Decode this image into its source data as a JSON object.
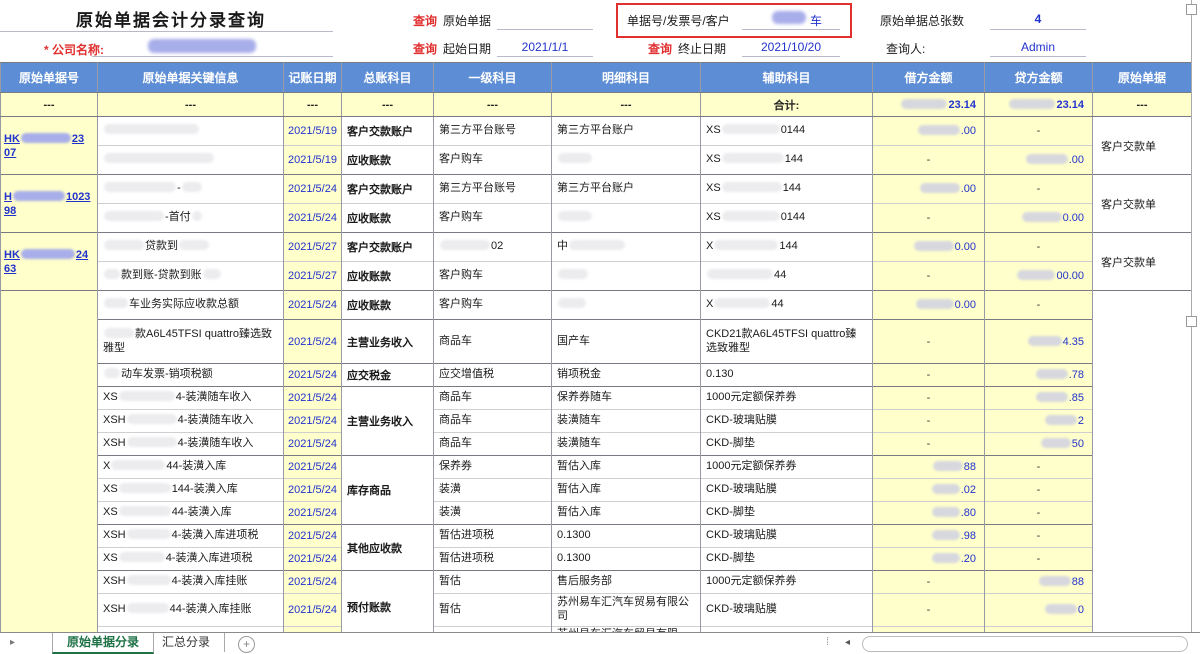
{
  "header": {
    "title": "原始单据会计分录查询",
    "company_label": "* 公司名称:",
    "query_label": "查询",
    "doc_query_label": "原始单据",
    "start_date_label": "起始日期",
    "start_date_value": "2021/1/1",
    "end_date_label": "终止日期",
    "end_date_value": "2021/10/20",
    "search_label": "单据号/发票号/客户",
    "search_value_suffix": "车",
    "total_label": "原始单据总张数",
    "total_value": "4",
    "operator_label": "查询人:",
    "operator_value": "Admin"
  },
  "table": {
    "columns": [
      "原始单据号",
      "原始单据关键信息",
      "记账日期",
      "总账科目",
      "一级科目",
      "明细科目",
      "辅助科目",
      "借方金额",
      "贷方金额",
      "原始单据"
    ],
    "summary": {
      "dash": "---",
      "total_label": "合计:",
      "debit_tail": "23.14",
      "credit_tail": "23.14"
    }
  },
  "rows": [
    {
      "group": 1,
      "doc": {
        "span": 2,
        "lines": [
          [
            {
              "t": "HK"
            },
            {
              "r": 50,
              "c": "b"
            },
            {
              "t": "23"
            }
          ],
          [
            {
              "t": "07"
            }
          ]
        ]
      },
      "key": [
        {
          "r": 95,
          "c": "w"
        }
      ],
      "date": "2021/5/19",
      "gl": "客户交款账户",
      "lvl": "第三方平台账号",
      "det": "第三方平台账户",
      "aux": [
        {
          "t": "XS"
        },
        {
          "r": 58,
          "c": "w"
        },
        {
          "t": "0144"
        }
      ],
      "debit": [
        {
          "r": 42
        },
        {
          "t": ".00"
        }
      ],
      "credit": [
        {
          "t": "-"
        }
      ],
      "orig": {
        "span": 2,
        "t": "客户交款单"
      }
    },
    {
      "key": [
        {
          "r": 110,
          "c": "w"
        }
      ],
      "date": "2021/5/19",
      "gl": "应收账款",
      "lvl": "客户购车",
      "det": [
        {
          "r": 34,
          "c": "w"
        }
      ],
      "aux": [
        {
          "t": "XS"
        },
        {
          "r": 62,
          "c": "w"
        },
        {
          "t": "144"
        }
      ],
      "debit": [
        {
          "t": "-"
        }
      ],
      "credit": [
        {
          "r": 42
        },
        {
          "t": ".00"
        }
      ]
    },
    {
      "group": 1,
      "doc": {
        "span": 2,
        "lines": [
          [
            {
              "t": "H"
            },
            {
              "r": 52,
              "c": "b"
            },
            {
              "t": "1023"
            }
          ],
          [
            {
              "t": "98"
            }
          ]
        ]
      },
      "key": [
        {
          "r": 72,
          "c": "w"
        },
        {
          "t": "-"
        },
        {
          "r": 20,
          "c": "w"
        }
      ],
      "date": "2021/5/24",
      "gl": "客户交款账户",
      "lvl": "第三方平台账号",
      "det": "第三方平台账户",
      "aux": [
        {
          "t": "XS"
        },
        {
          "r": 60,
          "c": "w"
        },
        {
          "t": "144"
        }
      ],
      "debit": [
        {
          "r": 40
        },
        {
          "t": ".00"
        }
      ],
      "credit": [
        {
          "t": "-"
        }
      ],
      "orig": {
        "span": 2,
        "t": "客户交款单"
      }
    },
    {
      "key": [
        {
          "r": 60,
          "c": "w"
        },
        {
          "t": "-首付"
        },
        {
          "r": 10,
          "c": "w"
        }
      ],
      "date": "2021/5/24",
      "gl": "应收账款",
      "lvl": "客户购车",
      "det": [
        {
          "r": 34,
          "c": "w"
        }
      ],
      "aux": [
        {
          "t": "XS"
        },
        {
          "r": 58,
          "c": "w"
        },
        {
          "t": "0144"
        }
      ],
      "debit": [
        {
          "t": "-"
        }
      ],
      "credit": [
        {
          "r": 40
        },
        {
          "t": "0.00"
        }
      ]
    },
    {
      "group": 1,
      "doc": {
        "span": 2,
        "lines": [
          [
            {
              "t": "HK"
            },
            {
              "r": 54,
              "c": "b"
            },
            {
              "t": "24"
            }
          ],
          [
            {
              "t": "63"
            }
          ]
        ]
      },
      "key": [
        {
          "r": 40,
          "c": "w"
        },
        {
          "t": "贷款到"
        },
        {
          "r": 30,
          "c": "w"
        }
      ],
      "date": "2021/5/27",
      "gl": "客户交款账户",
      "lvl": [
        {
          "r": 50,
          "c": "w"
        },
        {
          "t": "02"
        }
      ],
      "det": [
        {
          "t": "中"
        },
        {
          "r": 56,
          "c": "w"
        }
      ],
      "aux": [
        {
          "t": "X"
        },
        {
          "r": 64,
          "c": "w"
        },
        {
          "t": "144"
        }
      ],
      "debit": [
        {
          "r": 40
        },
        {
          "t": "0.00"
        }
      ],
      "credit": [
        {
          "t": "-"
        }
      ],
      "orig": {
        "span": 2,
        "t": "客户交款单"
      }
    },
    {
      "key": [
        {
          "r": 16,
          "c": "w"
        },
        {
          "t": "款到账-贷款到账"
        },
        {
          "r": 18,
          "c": "w"
        }
      ],
      "date": "2021/5/27",
      "gl": "应收账款",
      "lvl": "客户购车",
      "det": [
        {
          "r": 30,
          "c": "w"
        }
      ],
      "aux": [
        {
          "r": 66,
          "c": "w"
        },
        {
          "t": "44"
        }
      ],
      "debit": [
        {
          "t": "-"
        }
      ],
      "credit": [
        {
          "r": 38
        },
        {
          "t": "00.00"
        }
      ]
    },
    {
      "group": 1,
      "doc": {
        "span": 14,
        "t": ""
      },
      "key": [
        {
          "r": 24,
          "c": "w"
        },
        {
          "t": "车业务实际应收款总额"
        }
      ],
      "date": "2021/5/24",
      "gl": "应收账款",
      "lvl": "客户购车",
      "det": [
        {
          "r": 28,
          "c": "w"
        }
      ],
      "aux": [
        {
          "t": "X"
        },
        {
          "r": 56,
          "c": "w"
        },
        {
          "t": "44"
        }
      ],
      "debit": [
        {
          "r": 38
        },
        {
          "t": "0.00"
        }
      ],
      "credit": [
        {
          "t": "-"
        }
      ],
      "orig": {
        "span": 14,
        "t": ""
      }
    },
    {
      "group": 1,
      "key": [
        {
          "r": 30,
          "c": "w"
        },
        {
          "t": "款A6L45TFSI quattro臻选致雅型"
        }
      ],
      "date": "2021/5/24",
      "gl": "主营业务收入",
      "lvl": "商品车",
      "det": "国产车",
      "aux": "CKD21款A6L45TFSI quattro臻选致雅型",
      "debit": [
        {
          "t": "-"
        }
      ],
      "credit": [
        {
          "r": 34
        },
        {
          "t": "4.35"
        }
      ]
    },
    {
      "group": 1,
      "key": [
        {
          "r": 16,
          "c": "w"
        },
        {
          "t": "动车发票-销项税额"
        }
      ],
      "date": "2021/5/24",
      "gl": "应交税金",
      "lvl": "应交增值税",
      "det": "销项税金",
      "aux": "0.130",
      "debit": [
        {
          "t": "-"
        }
      ],
      "credit": [
        {
          "r": 32
        },
        {
          "t": ".78"
        }
      ]
    },
    {
      "group": 1,
      "key": [
        {
          "t": "XS"
        },
        {
          "r": 56,
          "c": "w"
        },
        {
          "t": "4-装潢随车收入"
        }
      ],
      "date": "2021/5/24",
      "gl": {
        "span": 3,
        "t": "主营业务收入"
      },
      "lvl": "商品车",
      "det": "保养券随车",
      "aux": "1000元定额保养券",
      "debit": [
        {
          "t": "-"
        }
      ],
      "credit": [
        {
          "r": 32
        },
        {
          "t": ".85"
        }
      ]
    },
    {
      "key": [
        {
          "t": "XSH"
        },
        {
          "r": 50,
          "c": "w"
        },
        {
          "t": "4-装潢随车收入"
        }
      ],
      "date": "2021/5/24",
      "lvl": "商品车",
      "det": "装潢随车",
      "aux": "CKD-玻璃贴膜",
      "debit": [
        {
          "t": "-"
        }
      ],
      "credit": [
        {
          "r": 32
        },
        {
          "t": "2"
        }
      ]
    },
    {
      "key": [
        {
          "t": "XSH"
        },
        {
          "r": 50,
          "c": "w"
        },
        {
          "t": "4-装潢随车收入"
        }
      ],
      "date": "2021/5/24",
      "lvl": "商品车",
      "det": "装潢随车",
      "aux": "CKD-脚垫",
      "debit": [
        {
          "t": "-"
        }
      ],
      "credit": [
        {
          "r": 30
        },
        {
          "t": "50"
        }
      ]
    },
    {
      "group": 1,
      "key": [
        {
          "t": "X"
        },
        {
          "r": 54,
          "c": "w"
        },
        {
          "t": "44-装潢入库"
        }
      ],
      "date": "2021/5/24",
      "gl": {
        "span": 3,
        "t": "库存商品"
      },
      "lvl": "保养券",
      "det": "暂估入库",
      "aux": "1000元定额保养券",
      "debit": [
        {
          "r": 30
        },
        {
          "t": "88"
        }
      ],
      "credit": [
        {
          "t": "-"
        }
      ]
    },
    {
      "key": [
        {
          "t": "XS"
        },
        {
          "r": 52,
          "c": "w"
        },
        {
          "t": "144-装潢入库"
        }
      ],
      "date": "2021/5/24",
      "lvl": "装潢",
      "det": "暂估入库",
      "aux": "CKD-玻璃贴膜",
      "debit": [
        {
          "r": 28
        },
        {
          "t": ".02"
        }
      ],
      "credit": [
        {
          "t": "-"
        }
      ]
    },
    {
      "key": [
        {
          "t": "XS"
        },
        {
          "r": 52,
          "c": "w"
        },
        {
          "t": "44-装潢入库"
        }
      ],
      "date": "2021/5/24",
      "lvl": "装潢",
      "det": "暂估入库",
      "aux": "CKD-脚垫",
      "debit": [
        {
          "r": 28
        },
        {
          "t": ".80"
        }
      ],
      "credit": [
        {
          "t": "-"
        }
      ]
    },
    {
      "group": 1,
      "key": [
        {
          "t": "XSH"
        },
        {
          "r": 44,
          "c": "w"
        },
        {
          "t": "4-装潢入库进项税"
        }
      ],
      "date": "2021/5/24",
      "gl": {
        "span": 2,
        "t": "其他应收款"
      },
      "lvl": "暂估进项税",
      "det": "0.1300",
      "aux": "CKD-玻璃贴膜",
      "debit": [
        {
          "r": 28
        },
        {
          "t": ".98"
        }
      ],
      "credit": [
        {
          "t": "-"
        }
      ]
    },
    {
      "key": [
        {
          "t": "XS"
        },
        {
          "r": 46,
          "c": "w"
        },
        {
          "t": "4-装潢入库进项税"
        }
      ],
      "date": "2021/5/24",
      "lvl": "暂估进项税",
      "det": "0.1300",
      "aux": "CKD-脚垫",
      "debit": [
        {
          "r": 28
        },
        {
          "t": ".20"
        }
      ],
      "credit": [
        {
          "t": "-"
        }
      ]
    },
    {
      "group": 1,
      "key": [
        {
          "t": "XSH"
        },
        {
          "r": 44,
          "c": "w"
        },
        {
          "t": "4-装潢入库挂账"
        }
      ],
      "date": "2021/5/24",
      "gl": {
        "span": 3,
        "t": "预付账款"
      },
      "lvl": "暂估",
      "det": "售后服务部",
      "aux": "1000元定额保养券",
      "debit": [
        {
          "t": "-"
        }
      ],
      "credit": [
        {
          "r": 32
        },
        {
          "t": "88"
        }
      ]
    },
    {
      "key": [
        {
          "t": "XSH"
        },
        {
          "r": 42,
          "c": "w"
        },
        {
          "t": "44-装潢入库挂账"
        }
      ],
      "date": "2021/5/24",
      "lvl": "暂估",
      "det": "苏州易车汇汽车贸易有限公司",
      "aux": "CKD-玻璃贴膜",
      "debit": [
        {
          "t": "-"
        }
      ],
      "credit": [
        {
          "r": 32
        },
        {
          "t": "0"
        }
      ]
    },
    {
      "key": "",
      "date": "",
      "lvl": "",
      "det": "苏州易车汇汽车贸易有限",
      "aux": "",
      "debit": "",
      "credit": ""
    }
  ],
  "tabs": {
    "nav_arrow": "▸",
    "active_label": "原始单据分录",
    "inactive_label": "汇总分录",
    "add_label": "+",
    "splitter": "⁞",
    "hscroll_left_arrow": "◂"
  },
  "colors": {
    "header_blue": "#5d8dd5",
    "cell_yellow": "#ffffcc",
    "accent_red": "#e03030",
    "link_blue": "#2233cc",
    "tab_green": "#1e7145"
  }
}
